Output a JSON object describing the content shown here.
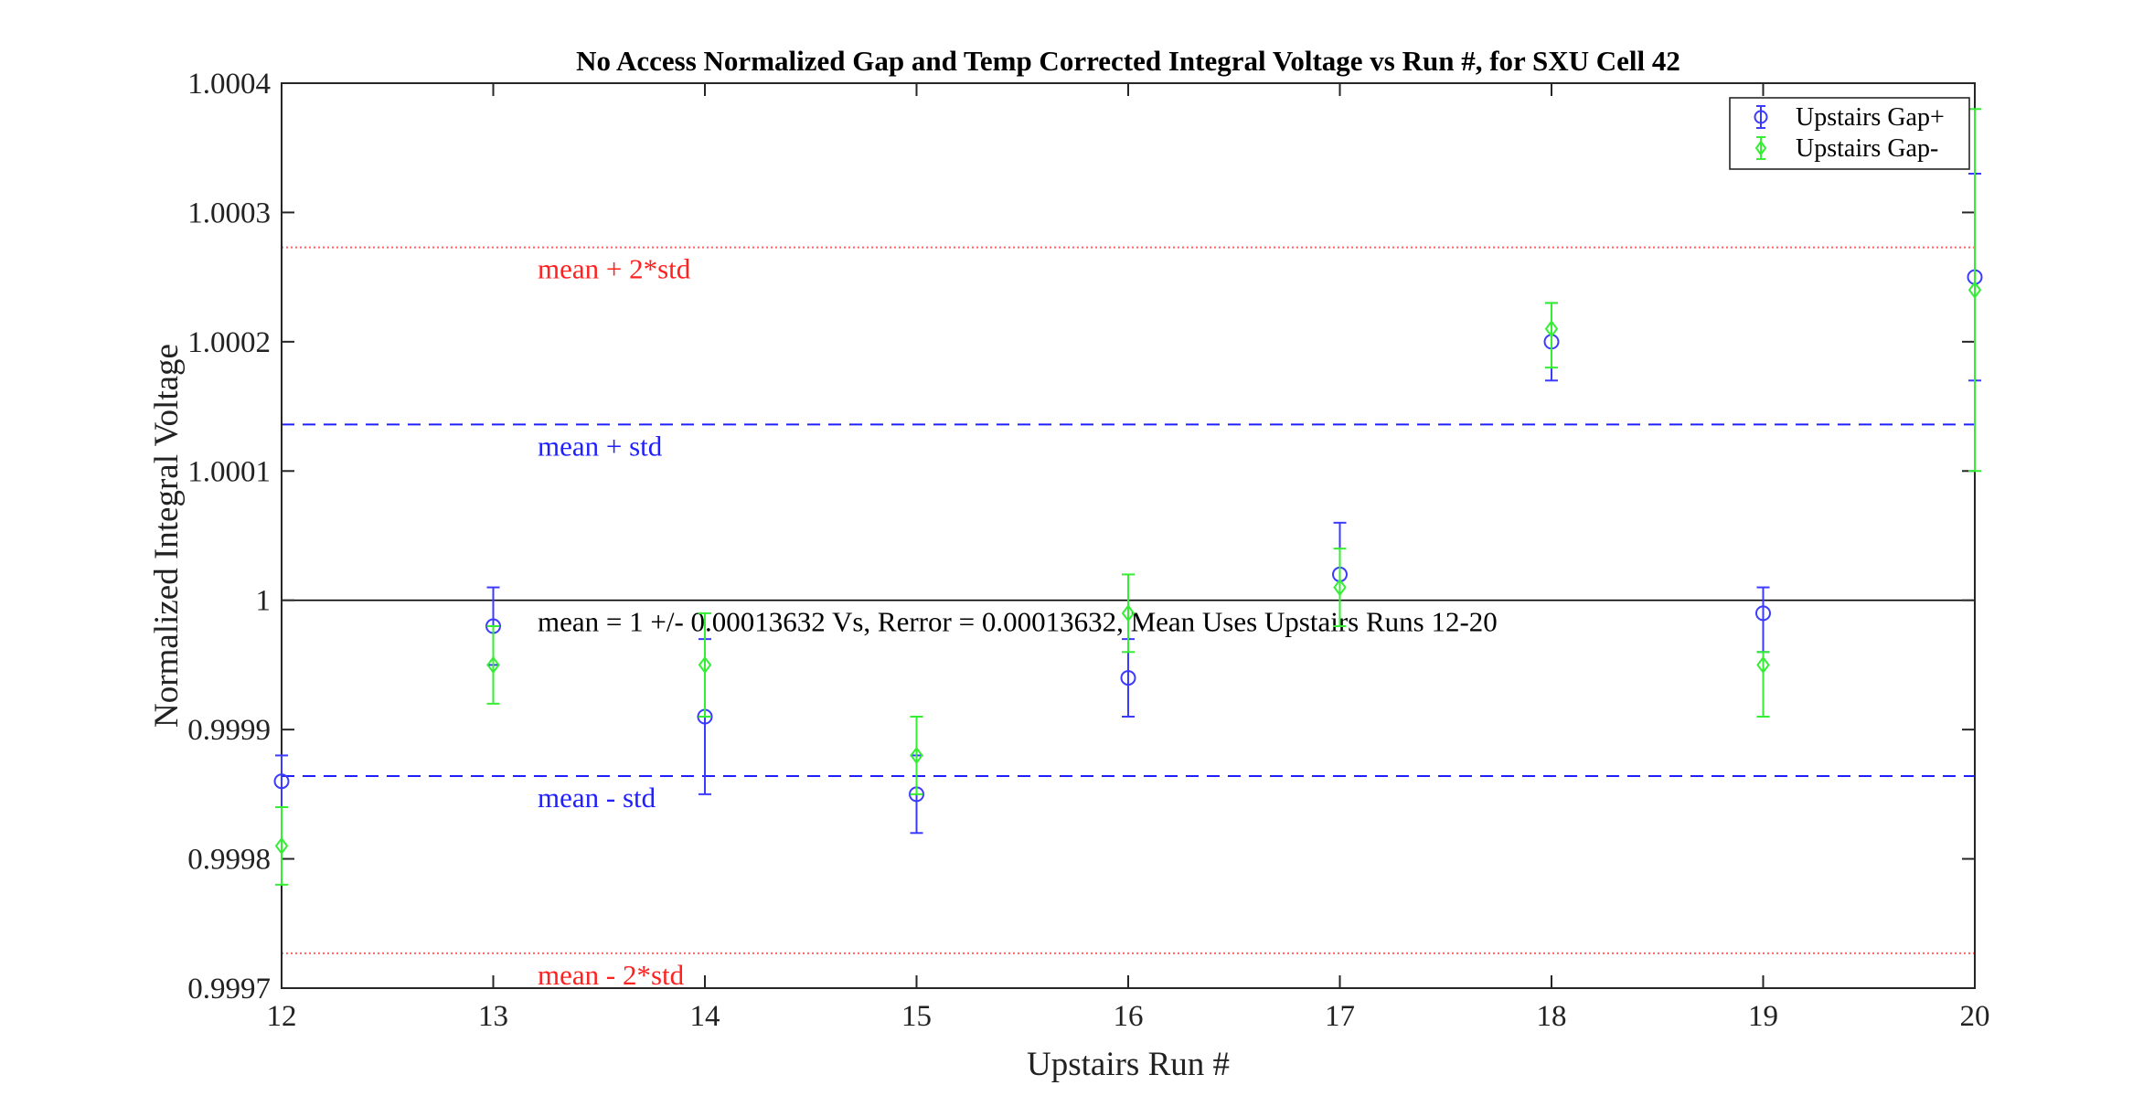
{
  "chart_data": {
    "type": "scatter",
    "title": "No Access Normalized Gap and Temp Corrected Integral Voltage vs Run #, for SXU Cell 42",
    "xlabel": "Upstairs Run #",
    "ylabel": "Normalized Integral Voltage",
    "xlim": [
      12,
      20
    ],
    "ylim": [
      0.9997,
      1.0004
    ],
    "x_ticks": [
      "12",
      "13",
      "14",
      "15",
      "16",
      "17",
      "18",
      "19",
      "20"
    ],
    "y_ticks": [
      "0.9997",
      "0.9998",
      "0.9999",
      "1",
      "1.0001",
      "1.0002",
      "1.0003",
      "1.0004"
    ],
    "legend_position": "top-right",
    "series": [
      {
        "name": "Upstairs Gap+",
        "color": "#3b3bff",
        "marker": "circle",
        "x": [
          12,
          13,
          14,
          15,
          16,
          17,
          18,
          19,
          20
        ],
        "y": [
          0.99986,
          0.99998,
          0.99991,
          0.99985,
          0.99994,
          1.00002,
          1.0002,
          0.99999,
          1.00025
        ],
        "err_low": [
          2e-05,
          3e-05,
          6e-05,
          3e-05,
          3e-05,
          4e-05,
          3e-05,
          3e-05,
          8e-05
        ],
        "err_high": [
          2e-05,
          3e-05,
          6e-05,
          3e-05,
          3e-05,
          4e-05,
          3e-05,
          2e-05,
          8e-05
        ]
      },
      {
        "name": "Upstairs Gap-",
        "color": "#33ee33",
        "marker": "diamond",
        "x": [
          12,
          13,
          14,
          15,
          16,
          17,
          18,
          19,
          20
        ],
        "y": [
          0.99981,
          0.99995,
          0.99995,
          0.99988,
          0.99999,
          1.00001,
          1.00021,
          0.99995,
          1.00024
        ],
        "err_low": [
          3e-05,
          3e-05,
          4e-05,
          3e-05,
          3e-05,
          3e-05,
          3e-05,
          4e-05,
          0.00014
        ],
        "err_high": [
          3e-05,
          3e-05,
          4e-05,
          3e-05,
          3e-05,
          3e-05,
          2e-05,
          1e-05,
          0.00014
        ]
      }
    ],
    "reference_lines": [
      {
        "y": 1.000273,
        "label": "mean + 2*std",
        "color": "#ff2020",
        "style": "dotted"
      },
      {
        "y": 1.000136,
        "label": "mean + std",
        "color": "#2020ff",
        "style": "dashed"
      },
      {
        "y": 1.0,
        "label": "mean = 1 +/- 0.00013632 Vs, Rerror = 0.00013632, Mean Uses Upstairs Runs 12-20",
        "color": "#000000",
        "style": "solid"
      },
      {
        "y": 0.999864,
        "label": "mean - std",
        "color": "#2020ff",
        "style": "dashed"
      },
      {
        "y": 0.999727,
        "label": "mean - 2*std",
        "color": "#ff2020",
        "style": "dotted"
      }
    ]
  }
}
